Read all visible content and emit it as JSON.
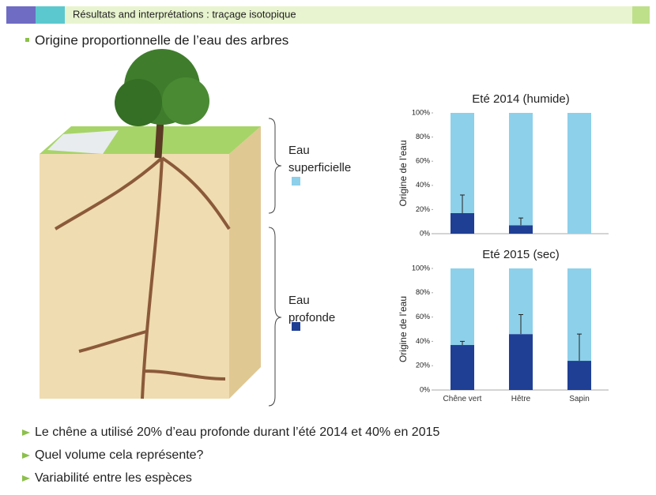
{
  "header": {
    "title": "Résultats and interprétations : traçage isotopique"
  },
  "subtitle": "Origine proportionnelle de l’eau des arbres",
  "bullets": [
    "Le chêne a utilisé 20% d’eau profonde durant l’été 2014 et 40% en 2015",
    "Quel volume cela représente?",
    "Variabilité entre les espèces"
  ],
  "chart_data": [
    {
      "type": "stacked-bar",
      "title": "Eté 2014 (humide)",
      "y_label": "Origine de l’eau",
      "categories": [
        null,
        null,
        null
      ],
      "series": [
        {
          "name": "Eau profonde",
          "color": "#1f3f95",
          "values": [
            17,
            7,
            0
          ],
          "errors": [
            15,
            6,
            null
          ]
        },
        {
          "name": "Eau superficielle",
          "color": "#8dd0ea",
          "values": [
            83,
            93,
            100
          ]
        }
      ],
      "ylim": [
        0,
        100
      ],
      "yticks": [
        {
          "value": 0,
          "label": "0%"
        },
        {
          "value": 20,
          "label": "20%"
        },
        {
          "value": 40,
          "label": "40%"
        },
        {
          "value": 60,
          "label": "60%"
        },
        {
          "value": 80,
          "label": "80%"
        },
        {
          "value": 100,
          "label": "100%"
        }
      ]
    },
    {
      "type": "stacked-bar",
      "title": "Eté 2015 (sec)",
      "y_label": "Origine de l’eau",
      "categories": [
        "Chêne vert",
        "Hêtre",
        "Sapin"
      ],
      "series": [
        {
          "color": "#1f3f95",
          "values": [
            37,
            46,
            24
          ],
          "errors": [
            3,
            16,
            22
          ]
        },
        {
          "color": "#8dd0ea",
          "values": [
            63,
            54,
            76
          ]
        }
      ],
      "ylim": [
        0,
        100
      ],
      "yticks": [
        {
          "value": 0,
          "label": "0%"
        },
        {
          "value": 20,
          "label": "20%"
        },
        {
          "value": 40,
          "label": "40%"
        },
        {
          "value": 60,
          "label": "60%"
        },
        {
          "value": 80,
          "label": "80%"
        },
        {
          "value": 100,
          "label": "100%"
        }
      ]
    }
  ]
}
